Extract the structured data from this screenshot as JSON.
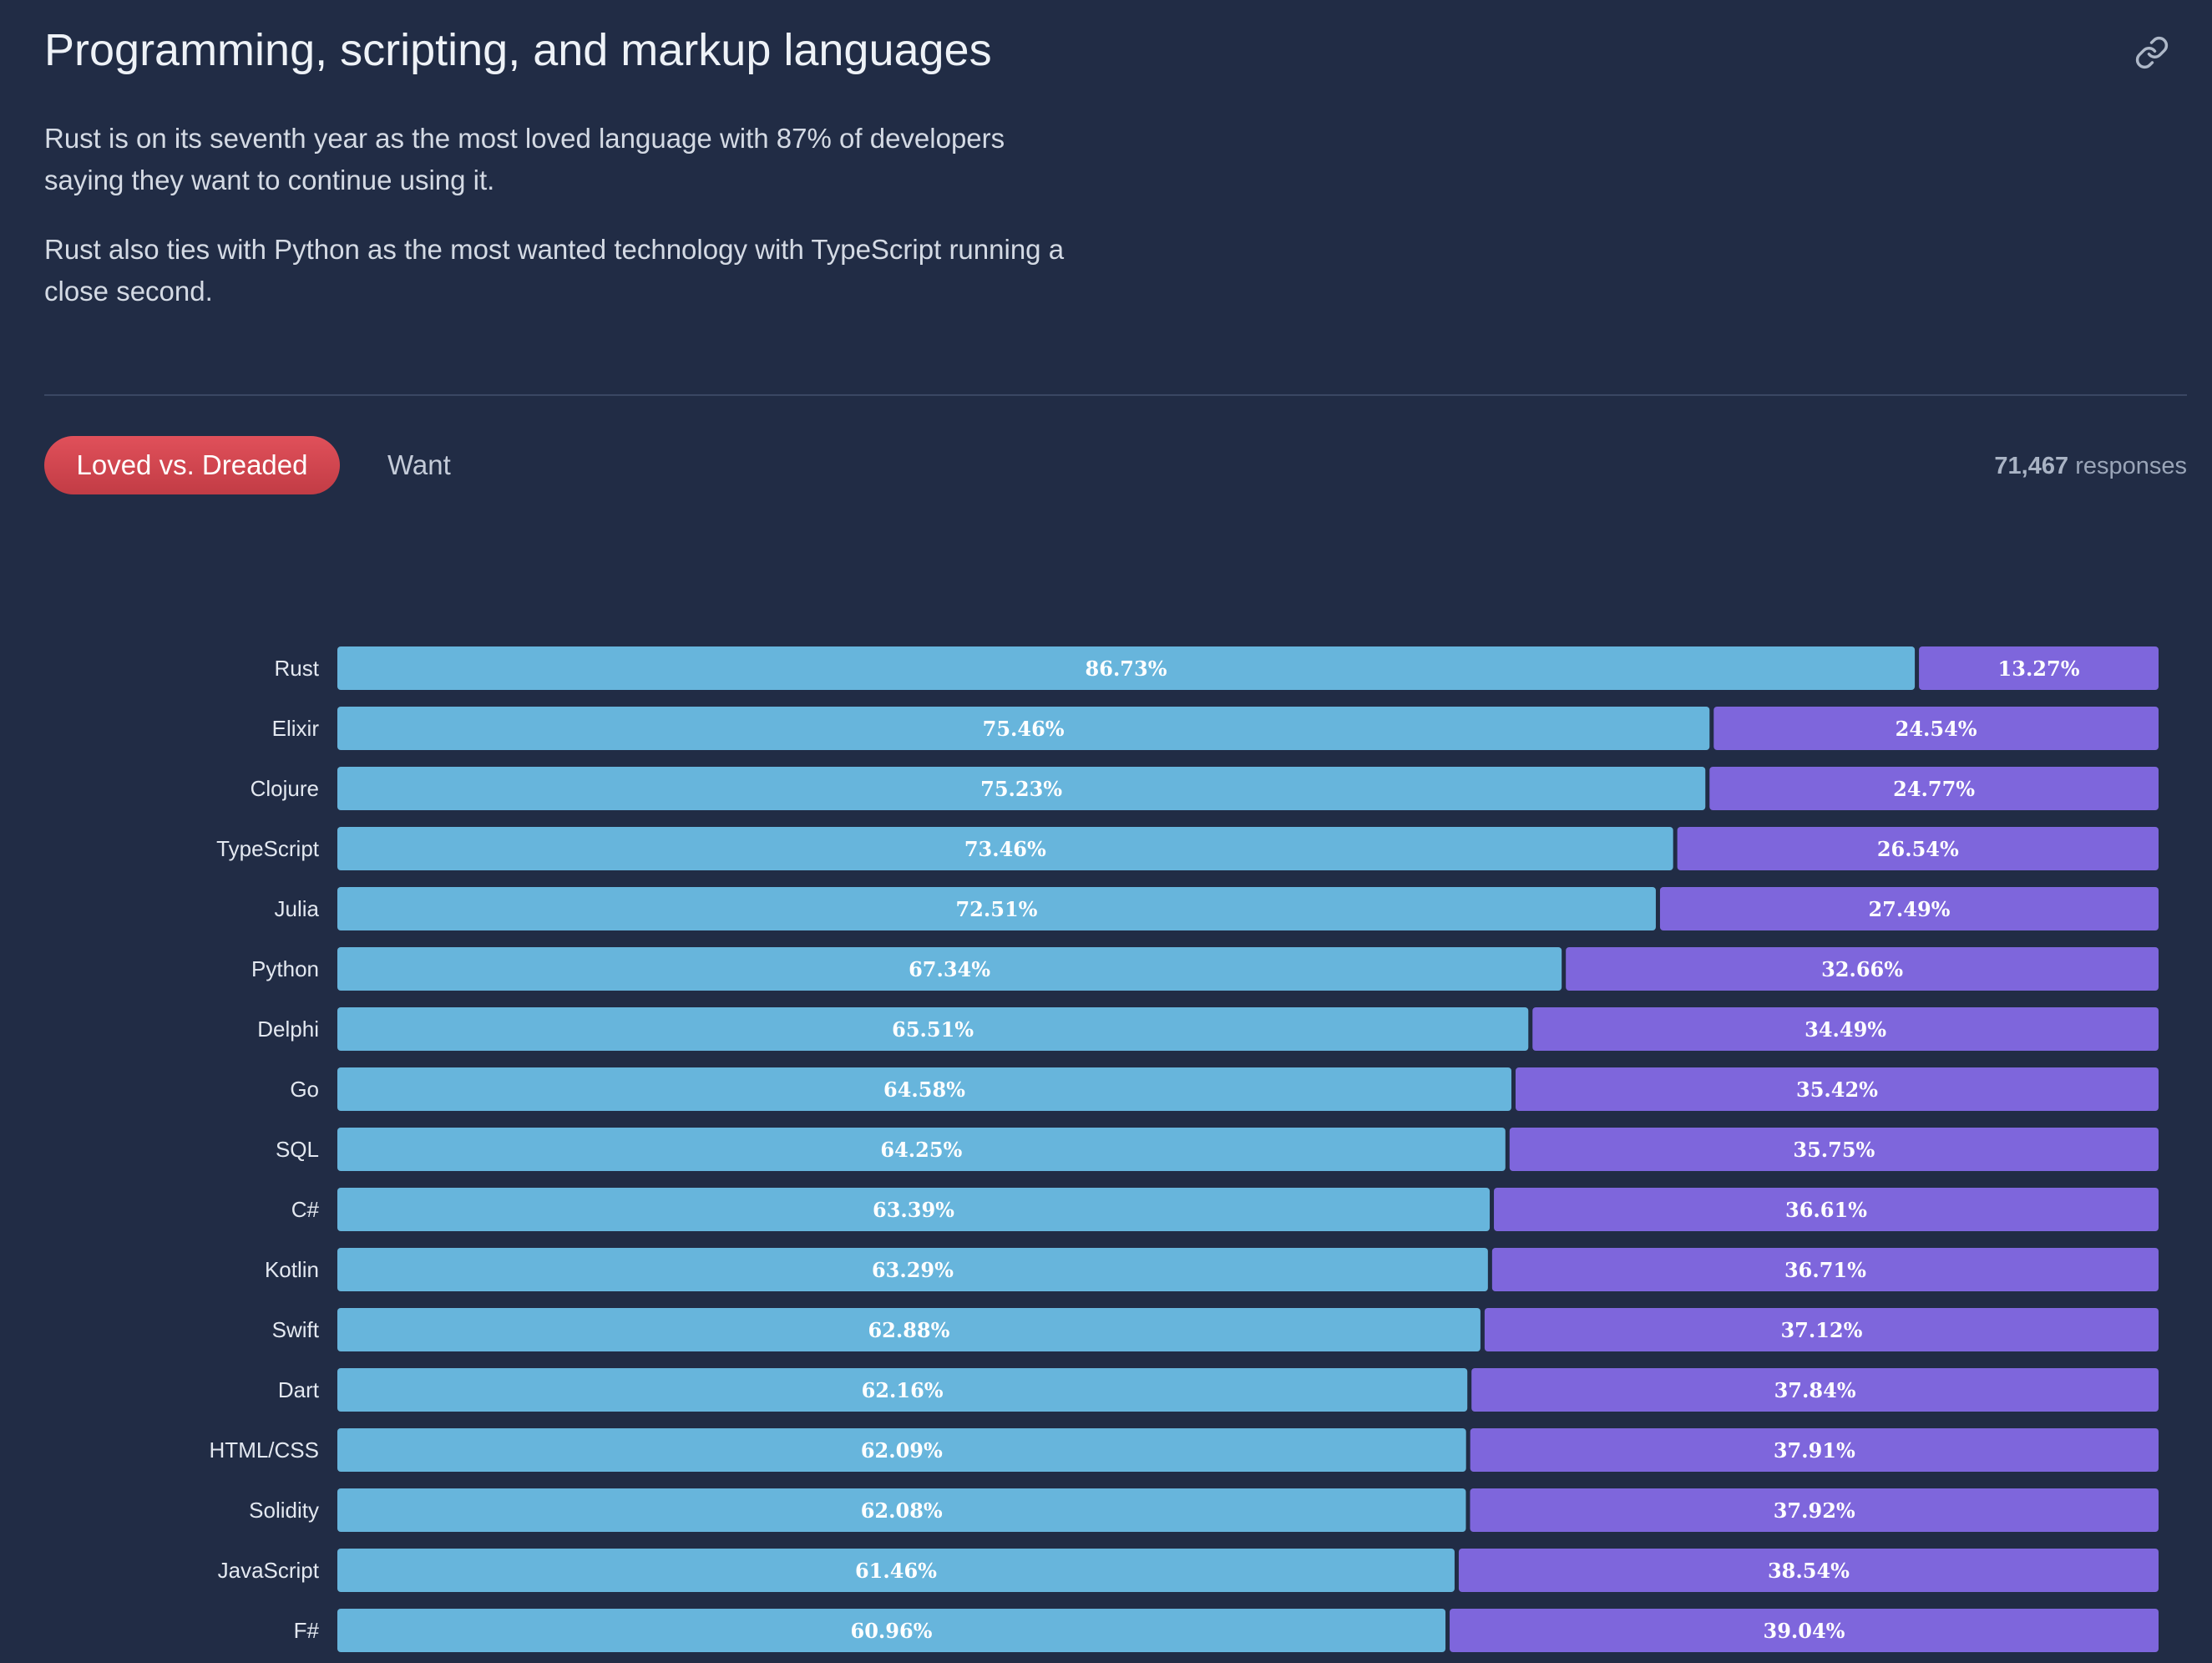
{
  "section": {
    "title": "Programming, scripting, and markup languages",
    "paragraphs": [
      "Rust is on its seventh year as the most loved language with 87% of developers saying they want to continue using it.",
      "Rust also ties with Python as the most wanted technology with TypeScript running a close second."
    ],
    "link_icon": "link-icon"
  },
  "tabs": {
    "active_label": "Loved vs. Dreaded",
    "inactive_label": "Want"
  },
  "responses": {
    "count": "71,467",
    "label": "responses"
  },
  "colors": {
    "background": "#212c45",
    "loved": "#67b5dc",
    "dreaded": "#7e66dc",
    "active_tab": "#d9474f"
  },
  "chart_data": {
    "type": "bar",
    "orientation": "horizontal",
    "stacked": true,
    "categories": [
      "Rust",
      "Elixir",
      "Clojure",
      "TypeScript",
      "Julia",
      "Python",
      "Delphi",
      "Go",
      "SQL",
      "C#",
      "Kotlin",
      "Swift",
      "Dart",
      "HTML/CSS",
      "Solidity",
      "JavaScript",
      "F#"
    ],
    "series": [
      {
        "color": "#67b5dc",
        "values": [
          86.73,
          75.46,
          75.23,
          73.46,
          72.51,
          67.34,
          65.51,
          64.58,
          64.25,
          63.39,
          63.29,
          62.88,
          62.16,
          62.09,
          62.08,
          61.46,
          60.96
        ],
        "labels": [
          "86.73%",
          "75.46%",
          "75.23%",
          "73.46%",
          "72.51%",
          "67.34%",
          "65.51%",
          "64.58%",
          "64.25%",
          "63.39%",
          "63.29%",
          "62.88%",
          "62.16%",
          "62.09%",
          "62.08%",
          "61.46%",
          "60.96%"
        ]
      },
      {
        "color": "#7e66dc",
        "values": [
          13.27,
          24.54,
          24.77,
          26.54,
          27.49,
          32.66,
          34.49,
          35.42,
          35.75,
          36.61,
          36.71,
          37.12,
          37.84,
          37.91,
          37.92,
          38.54,
          39.04
        ],
        "labels": [
          "13.27%",
          "24.54%",
          "24.77%",
          "26.54%",
          "27.49%",
          "32.66%",
          "34.49%",
          "35.42%",
          "35.75%",
          "36.61%",
          "36.71%",
          "37.12%",
          "37.84%",
          "37.91%",
          "37.92%",
          "38.54%",
          "39.04%"
        ]
      }
    ],
    "xlim": [
      0,
      100
    ],
    "grid": false,
    "legend": "none"
  }
}
